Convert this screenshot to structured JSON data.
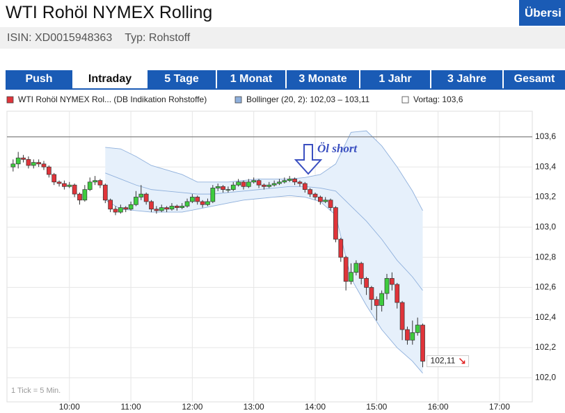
{
  "header": {
    "title": "WTI Rohöl NYMEX Rolling",
    "button": "Übersi",
    "isin": "ISIN: XD0015948363",
    "typ": "Typ: Rohstoff"
  },
  "tabs": [
    "Push",
    "Intraday",
    "5 Tage",
    "1 Monat",
    "3 Monate",
    "1 Jahr",
    "3 Jahre",
    "Gesamt"
  ],
  "active_tab": 1,
  "chart_data": {
    "type": "candlestick",
    "legend": [
      "WTI Rohöl NYMEX Rol... (DB Indikation Rohstoffe)",
      "Bollinger (20, 2): 102,03 – 103,11",
      "Vortag: 103,6"
    ],
    "note": "1 Tick = 5 Min.",
    "annotation": "Öl short",
    "xlim": [
      539,
      1052
    ],
    "xticks": [
      {
        "value": 600,
        "label": "10:00"
      },
      {
        "value": 660,
        "label": "11:00"
      },
      {
        "value": 720,
        "label": "12:00"
      },
      {
        "value": 780,
        "label": "13:00"
      },
      {
        "value": 840,
        "label": "14:00"
      },
      {
        "value": 900,
        "label": "15:00"
      },
      {
        "value": 960,
        "label": "16:00"
      },
      {
        "value": 1020,
        "label": "17:00"
      }
    ],
    "ylim": [
      101.84,
      103.77
    ],
    "yticks": [
      {
        "value": 102.0,
        "label": "102,0"
      },
      {
        "value": 102.2,
        "label": "102,2"
      },
      {
        "value": 102.4,
        "label": "102,4"
      },
      {
        "value": 102.6,
        "label": "102,6"
      },
      {
        "value": 102.8,
        "label": "102,8"
      },
      {
        "value": 103.0,
        "label": "103,0"
      },
      {
        "value": 103.2,
        "label": "103,2"
      },
      {
        "value": 103.4,
        "label": "103,4"
      },
      {
        "value": 103.6,
        "label": "103,6"
      }
    ],
    "grid": true,
    "up_color": "#3ecc3e",
    "down_color": "#e0343a",
    "x": [
      545,
      550,
      555,
      560,
      565,
      570,
      575,
      580,
      585,
      590,
      595,
      600,
      605,
      610,
      615,
      620,
      625,
      630,
      635,
      640,
      645,
      650,
      655,
      660,
      665,
      670,
      675,
      680,
      685,
      690,
      695,
      700,
      705,
      710,
      715,
      720,
      725,
      730,
      735,
      740,
      745,
      750,
      755,
      760,
      765,
      770,
      775,
      780,
      785,
      790,
      795,
      800,
      805,
      810,
      815,
      820,
      825,
      830,
      835,
      840,
      845,
      850,
      855,
      860,
      865,
      870,
      875,
      880,
      885,
      890,
      895,
      900,
      905,
      910,
      915,
      920,
      925,
      930,
      935,
      940,
      945
    ],
    "open": [
      103.4,
      103.42,
      103.46,
      103.45,
      103.41,
      103.43,
      103.42,
      103.4,
      103.35,
      103.3,
      103.29,
      103.27,
      103.28,
      103.22,
      103.18,
      103.25,
      103.3,
      103.31,
      103.28,
      103.18,
      103.12,
      103.1,
      103.13,
      103.12,
      103.15,
      103.2,
      103.22,
      103.17,
      103.12,
      103.11,
      103.13,
      103.12,
      103.14,
      103.13,
      103.14,
      103.17,
      103.2,
      103.17,
      103.15,
      103.17,
      103.26,
      103.27,
      103.25,
      103.25,
      103.28,
      103.3,
      103.27,
      103.3,
      103.31,
      103.28,
      103.27,
      103.28,
      103.29,
      103.3,
      103.31,
      103.32,
      103.3,
      103.29,
      103.25,
      103.22,
      103.2,
      103.17,
      103.18,
      103.13,
      102.92,
      102.8,
      102.64,
      102.7,
      102.76,
      102.66,
      102.6,
      102.52,
      102.48,
      102.56,
      102.66,
      102.62,
      102.5,
      102.32,
      102.25,
      102.3,
      102.35
    ],
    "high": [
      103.45,
      103.5,
      103.48,
      103.47,
      103.45,
      103.45,
      103.44,
      103.41,
      103.36,
      103.31,
      103.31,
      103.3,
      103.29,
      103.23,
      103.28,
      103.33,
      103.34,
      103.32,
      103.29,
      103.19,
      103.14,
      103.15,
      103.14,
      103.17,
      103.24,
      103.28,
      103.23,
      103.18,
      103.14,
      103.15,
      103.14,
      103.16,
      103.15,
      103.16,
      103.19,
      103.22,
      103.21,
      103.18,
      103.19,
      103.28,
      103.29,
      103.28,
      103.27,
      103.3,
      103.32,
      103.31,
      103.32,
      103.33,
      103.32,
      103.29,
      103.3,
      103.31,
      103.32,
      103.33,
      103.34,
      103.33,
      103.31,
      103.3,
      103.26,
      103.23,
      103.21,
      103.2,
      103.19,
      103.14,
      102.93,
      102.81,
      102.76,
      102.78,
      102.77,
      102.67,
      102.61,
      102.54,
      102.58,
      102.69,
      102.7,
      102.63,
      102.51,
      102.34,
      102.38,
      102.4,
      102.36
    ],
    "low": [
      103.37,
      103.39,
      103.43,
      103.39,
      103.39,
      103.4,
      103.38,
      103.33,
      103.28,
      103.27,
      103.25,
      103.26,
      103.2,
      103.15,
      103.17,
      103.24,
      103.28,
      103.26,
      103.16,
      103.1,
      103.08,
      103.09,
      103.1,
      103.11,
      103.14,
      103.18,
      103.15,
      103.1,
      103.09,
      103.1,
      103.1,
      103.11,
      103.11,
      103.12,
      103.13,
      103.16,
      103.15,
      103.13,
      103.14,
      103.16,
      103.24,
      103.23,
      103.23,
      103.24,
      103.27,
      103.25,
      103.26,
      103.29,
      103.26,
      103.25,
      103.26,
      103.27,
      103.28,
      103.29,
      103.3,
      103.28,
      103.27,
      103.23,
      103.2,
      103.18,
      103.15,
      103.16,
      103.11,
      102.9,
      102.77,
      102.58,
      102.62,
      102.68,
      102.62,
      102.55,
      102.45,
      102.38,
      102.44,
      102.52,
      102.58,
      102.46,
      102.25,
      102.22,
      102.22,
      102.28,
      102.07
    ],
    "close": [
      103.42,
      103.46,
      103.45,
      103.41,
      103.43,
      103.42,
      103.4,
      103.35,
      103.3,
      103.29,
      103.27,
      103.28,
      103.22,
      103.18,
      103.25,
      103.3,
      103.31,
      103.28,
      103.18,
      103.12,
      103.1,
      103.13,
      103.12,
      103.15,
      103.2,
      103.22,
      103.17,
      103.12,
      103.11,
      103.13,
      103.12,
      103.14,
      103.13,
      103.14,
      103.17,
      103.2,
      103.17,
      103.15,
      103.17,
      103.26,
      103.27,
      103.25,
      103.25,
      103.28,
      103.3,
      103.27,
      103.3,
      103.31,
      103.28,
      103.27,
      103.28,
      103.29,
      103.3,
      103.31,
      103.32,
      103.3,
      103.29,
      103.25,
      103.22,
      103.2,
      103.17,
      103.18,
      103.13,
      102.92,
      102.8,
      102.64,
      102.7,
      102.76,
      102.66,
      102.6,
      102.52,
      102.48,
      102.56,
      102.66,
      102.62,
      102.5,
      102.32,
      102.25,
      102.3,
      102.35,
      102.11
    ],
    "last_price": {
      "value": 102.11,
      "label": "102,11"
    },
    "reference": {
      "value": 103.6,
      "color": "#777777"
    },
    "bollinger": {
      "color": "#8fb0dc",
      "fill": "#e6f0fb",
      "x": [
        635,
        650,
        665,
        680,
        695,
        710,
        725,
        740,
        755,
        770,
        785,
        800,
        815,
        830,
        845,
        860,
        875,
        890,
        905,
        920,
        935,
        945
      ],
      "upper": [
        103.53,
        103.52,
        103.47,
        103.41,
        103.38,
        103.35,
        103.3,
        103.3,
        103.3,
        103.31,
        103.32,
        103.32,
        103.32,
        103.33,
        103.35,
        103.42,
        103.63,
        103.64,
        103.54,
        103.4,
        103.24,
        103.11
      ],
      "middle": [
        103.36,
        103.32,
        103.28,
        103.25,
        103.24,
        103.23,
        103.22,
        103.22,
        103.23,
        103.24,
        103.25,
        103.26,
        103.27,
        103.27,
        103.26,
        103.24,
        103.14,
        103.04,
        102.92,
        102.78,
        102.67,
        102.58
      ],
      "lower": [
        103.18,
        103.12,
        103.11,
        103.1,
        103.1,
        103.1,
        103.12,
        103.14,
        103.16,
        103.18,
        103.19,
        103.2,
        103.21,
        103.2,
        103.17,
        103.08,
        102.66,
        102.48,
        102.32,
        102.2,
        102.11,
        102.03
      ]
    }
  }
}
